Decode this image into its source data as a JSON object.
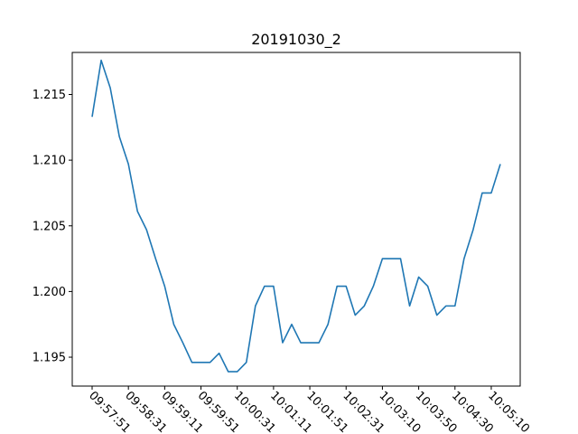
{
  "chart_data": {
    "type": "line",
    "title": "20191030_2",
    "xlabel": "",
    "ylabel": "",
    "ylim": [
      1.1928,
      1.2182
    ],
    "grid": false,
    "line_color": "#1f77b4",
    "x_tick_labels": [
      "09:57:51",
      "09:58:31",
      "09:59:11",
      "09:59:51",
      "10:00:31",
      "10:01:11",
      "10:01:51",
      "10:02:31",
      "10:03:10",
      "10:03:50",
      "10:04:30",
      "10:05:10"
    ],
    "x_tick_indices": [
      0,
      4,
      8,
      12,
      16,
      20,
      24,
      28,
      32,
      36,
      40,
      44
    ],
    "y_ticks": [
      1.195,
      1.2,
      1.205,
      1.21,
      1.215
    ],
    "y_tick_labels": [
      "1.195",
      "1.200",
      "1.205",
      "1.210",
      "1.215"
    ],
    "series": [
      {
        "values": [
          1.2133,
          1.2176,
          1.2155,
          1.2118,
          1.2097,
          1.2061,
          1.2047,
          1.2025,
          1.2004,
          1.1975,
          1.1961,
          1.1946,
          1.1946,
          1.1946,
          1.1953,
          1.1939,
          1.1939,
          1.1946,
          1.1989,
          1.2004,
          1.2004,
          1.1961,
          1.1975,
          1.1961,
          1.1961,
          1.1961,
          1.1975,
          1.2004,
          1.2004,
          1.1982,
          1.1989,
          1.2004,
          1.2025,
          1.2025,
          1.2025,
          1.1989,
          1.2011,
          1.2004,
          1.1982,
          1.1989,
          1.1989,
          1.2025,
          1.2047,
          1.2075,
          1.2075,
          1.2097
        ]
      }
    ]
  }
}
